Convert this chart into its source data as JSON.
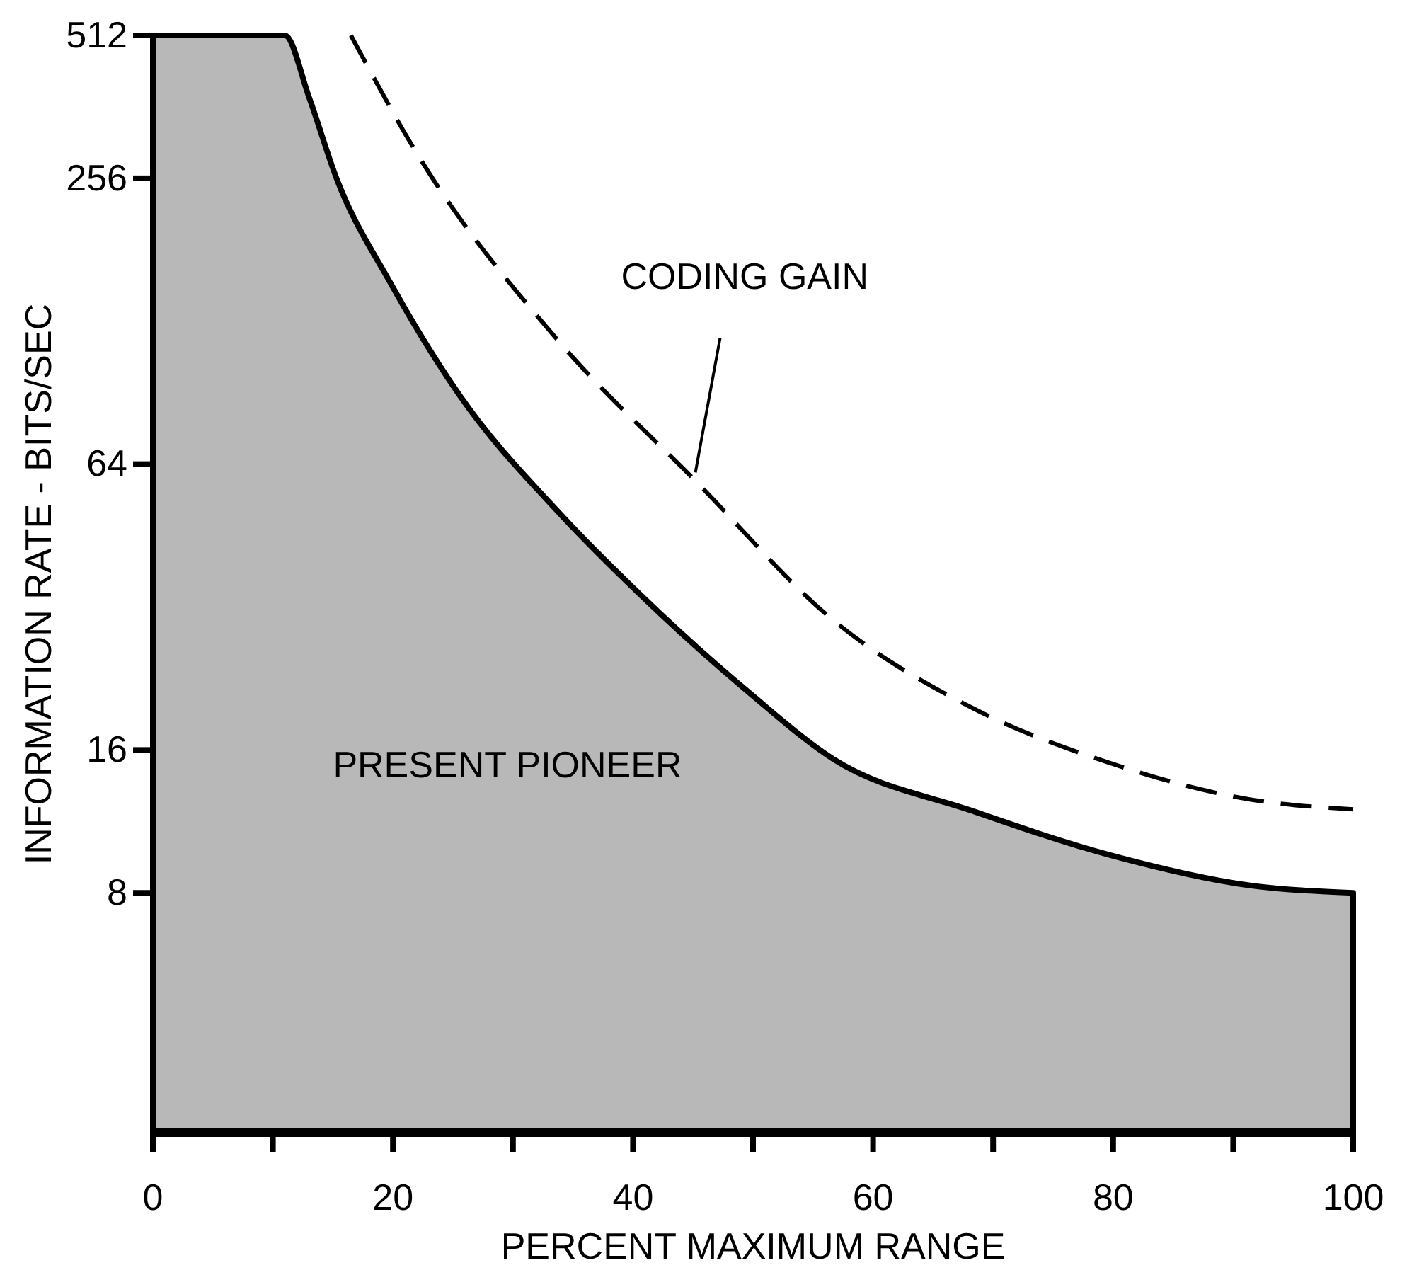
{
  "chart_data": {
    "type": "area",
    "xlabel": "PERCENT MAXIMUM RANGE",
    "ylabel": "INFORMATION RATE - BITS/SEC",
    "log": "y",
    "xlim": [
      0,
      100
    ],
    "xticks": [
      0,
      {
        "value": 10,
        "label": null
      },
      20,
      {
        "value": 30,
        "label": null
      },
      40,
      {
        "value": 50,
        "label": null
      },
      60,
      {
        "value": 70,
        "label": null
      },
      80,
      {
        "value": 90,
        "label": null
      },
      100
    ],
    "ylim": [
      2.5,
      512
    ],
    "yticks": [
      8,
      16,
      64,
      256,
      512
    ],
    "series": [
      {
        "color": "#b8b8b8",
        "x": [
          0,
          11,
          13,
          15.3,
          19.8,
          25.6,
          33.7,
          40.6,
          49.8,
          56.7,
          68.3,
          79.8,
          91.3,
          100
        ],
        "values": [
          512,
          512,
          380,
          256,
          154,
          89,
          51,
          34,
          21,
          15.3,
          11.9,
          9.6,
          8.3,
          8
        ]
      },
      {
        "type": "line",
        "color": "#000000",
        "line_style": "dashed",
        "x": [
          16.5,
          22.1,
          33.7,
          45.2,
          56.7,
          68.3,
          79.8,
          91.3,
          100
        ],
        "values": [
          512,
          286,
          117,
          59,
          30,
          19.6,
          15,
          12.6,
          12
        ]
      }
    ],
    "annotations": [
      {
        "text": "CODING GAIN",
        "x": 45.2,
        "y": 59
      },
      "PRESENT PIONEER"
    ],
    "grid": false
  }
}
